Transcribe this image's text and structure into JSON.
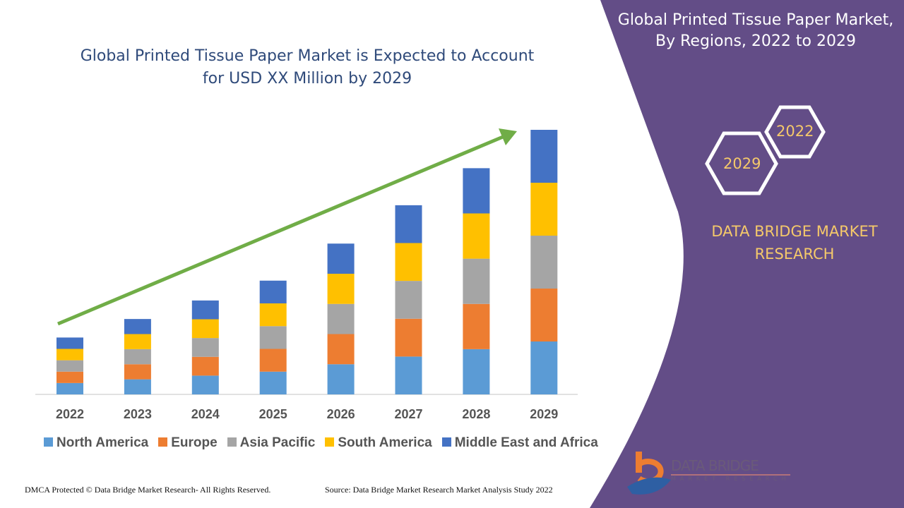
{
  "chart_data": {
    "type": "bar",
    "stacked": true,
    "title": "Global Printed Tissue Paper Market is Expected to Account for USD XX Million by 2029",
    "categories": [
      "2022",
      "2023",
      "2024",
      "2025",
      "2026",
      "2027",
      "2028",
      "2029"
    ],
    "series": [
      {
        "name": "North America",
        "color": "#5b9bd5",
        "values": [
          4.3,
          5.7,
          7.1,
          8.6,
          11.4,
          14.3,
          17.1,
          20
        ]
      },
      {
        "name": "Europe",
        "color": "#ed7d31",
        "values": [
          4.3,
          5.7,
          7.1,
          8.6,
          11.4,
          14.3,
          17.1,
          20
        ]
      },
      {
        "name": "Asia Pacific",
        "color": "#a5a5a5",
        "values": [
          4.3,
          5.7,
          7.1,
          8.6,
          11.4,
          14.3,
          17.1,
          20
        ]
      },
      {
        "name": "South America",
        "color": "#ffc000",
        "values": [
          4.3,
          5.7,
          7.1,
          8.6,
          11.4,
          14.3,
          17.1,
          20
        ]
      },
      {
        "name": "Middle East and Africa",
        "color": "#4472c4",
        "values": [
          4.3,
          5.7,
          7.1,
          8.6,
          11.4,
          14.3,
          17.1,
          20
        ]
      }
    ],
    "ylim": [
      0,
      100
    ],
    "grid": false,
    "legend_position": "bottom",
    "trend_arrow_color": "#70ad47"
  },
  "title_line1": "Global Printed Tissue Paper Market is Expected to Account",
  "title_line2": "for USD XX Million by 2029",
  "panel": {
    "title_line1": "Global Printed Tissue Paper Market,",
    "title_line2": "By Regions, 2022 to 2029",
    "hex_start": "2022",
    "hex_end": "2029",
    "brand_line1": "DATA BRIDGE MARKET",
    "brand_line2": "RESEARCH",
    "color": "#634d87"
  },
  "logo": {
    "line1": "DATA BRIDGE",
    "line2": "MARKET RESEARCH"
  },
  "footer": {
    "left": "DMCA Protected © Data Bridge Market Research- All Rights Reserved.",
    "right": "Source: Data Bridge Market Research Market Analysis Study 2022"
  }
}
